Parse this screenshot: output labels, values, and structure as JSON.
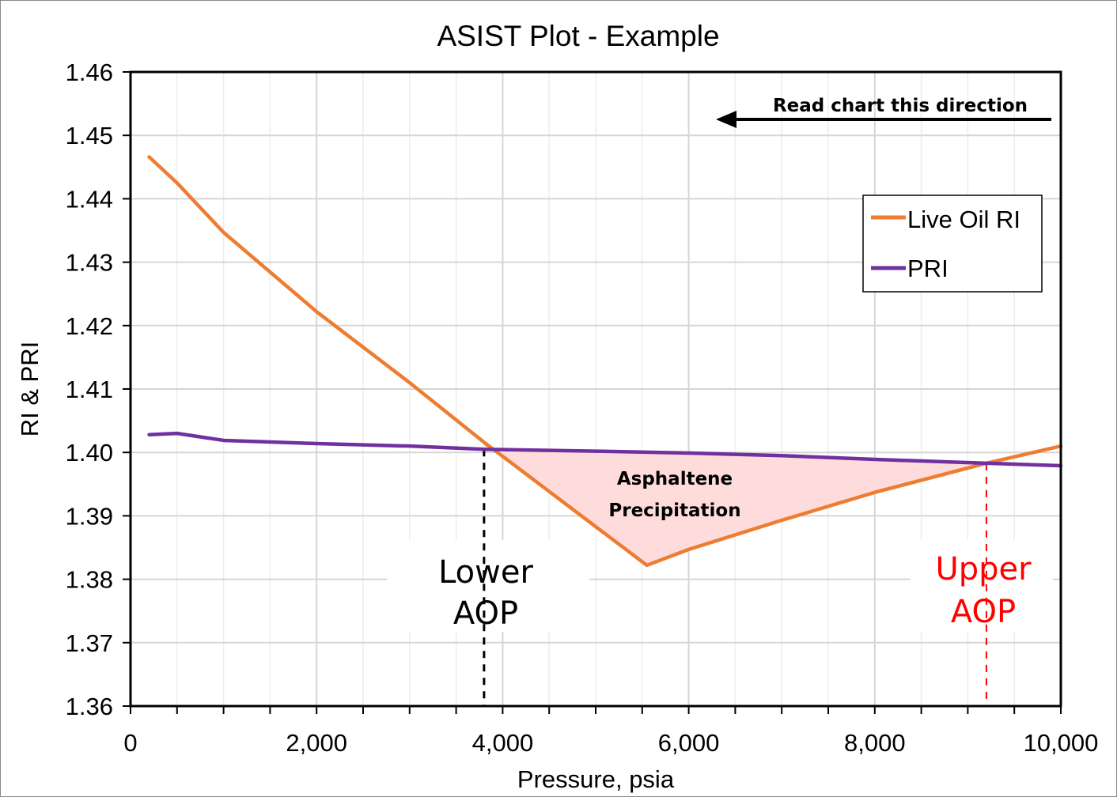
{
  "chart_data": {
    "type": "line",
    "title": "ASIST Plot - Example",
    "xlabel": "Pressure, psia",
    "ylabel": "RI & PRI",
    "xlim": [
      0,
      10000
    ],
    "ylim": [
      1.36,
      1.46
    ],
    "x_ticks": [
      0,
      2000,
      4000,
      6000,
      8000,
      10000
    ],
    "x_tick_labels": [
      "0",
      "2,000",
      "4,000",
      "6,000",
      "8,000",
      "10,000"
    ],
    "x_minor_step": 500,
    "y_ticks": [
      1.36,
      1.37,
      1.38,
      1.39,
      1.4,
      1.41,
      1.42,
      1.43,
      1.44,
      1.45,
      1.46
    ],
    "y_tick_labels": [
      "1.36",
      "1.37",
      "1.38",
      "1.39",
      "1.40",
      "1.41",
      "1.42",
      "1.43",
      "1.44",
      "1.45",
      "1.46"
    ],
    "grid": true,
    "legend_position": "top-right",
    "series": [
      {
        "name": "Live Oil RI",
        "color": "#ED7D31",
        "x": [
          200,
          500,
          1000,
          2000,
          3000,
          3800,
          5550,
          6000,
          7000,
          8000,
          9200,
          10000
        ],
        "y": [
          1.4466,
          1.4425,
          1.4347,
          1.4222,
          1.411,
          1.4016,
          1.3822,
          1.3847,
          1.3893,
          1.3937,
          1.3983,
          1.401
        ]
      },
      {
        "name": "PRI",
        "color": "#7030A0",
        "x": [
          200,
          500,
          1000,
          2000,
          3000,
          3800,
          5000,
          6000,
          7000,
          8000,
          9200,
          10000
        ],
        "y": [
          1.4028,
          1.403,
          1.4019,
          1.4014,
          1.401,
          1.4005,
          1.4002,
          1.3999,
          1.3995,
          1.3989,
          1.3983,
          1.3979
        ]
      }
    ],
    "shaded_region": {
      "label_line1": "Asphaltene",
      "label_line2": "Precipitation",
      "color": "#FFDCDC",
      "x_from": 3800,
      "x_to": 9200
    },
    "direction_note": "Read chart this direction",
    "markers": [
      {
        "id": "lower",
        "x": 3800,
        "label_line1": "Lower",
        "label_line2": "AOP",
        "color": "#000000"
      },
      {
        "id": "upper",
        "x": 9200,
        "label_line1": "Upper",
        "label_line2": "AOP",
        "color": "#FF0000"
      }
    ]
  }
}
